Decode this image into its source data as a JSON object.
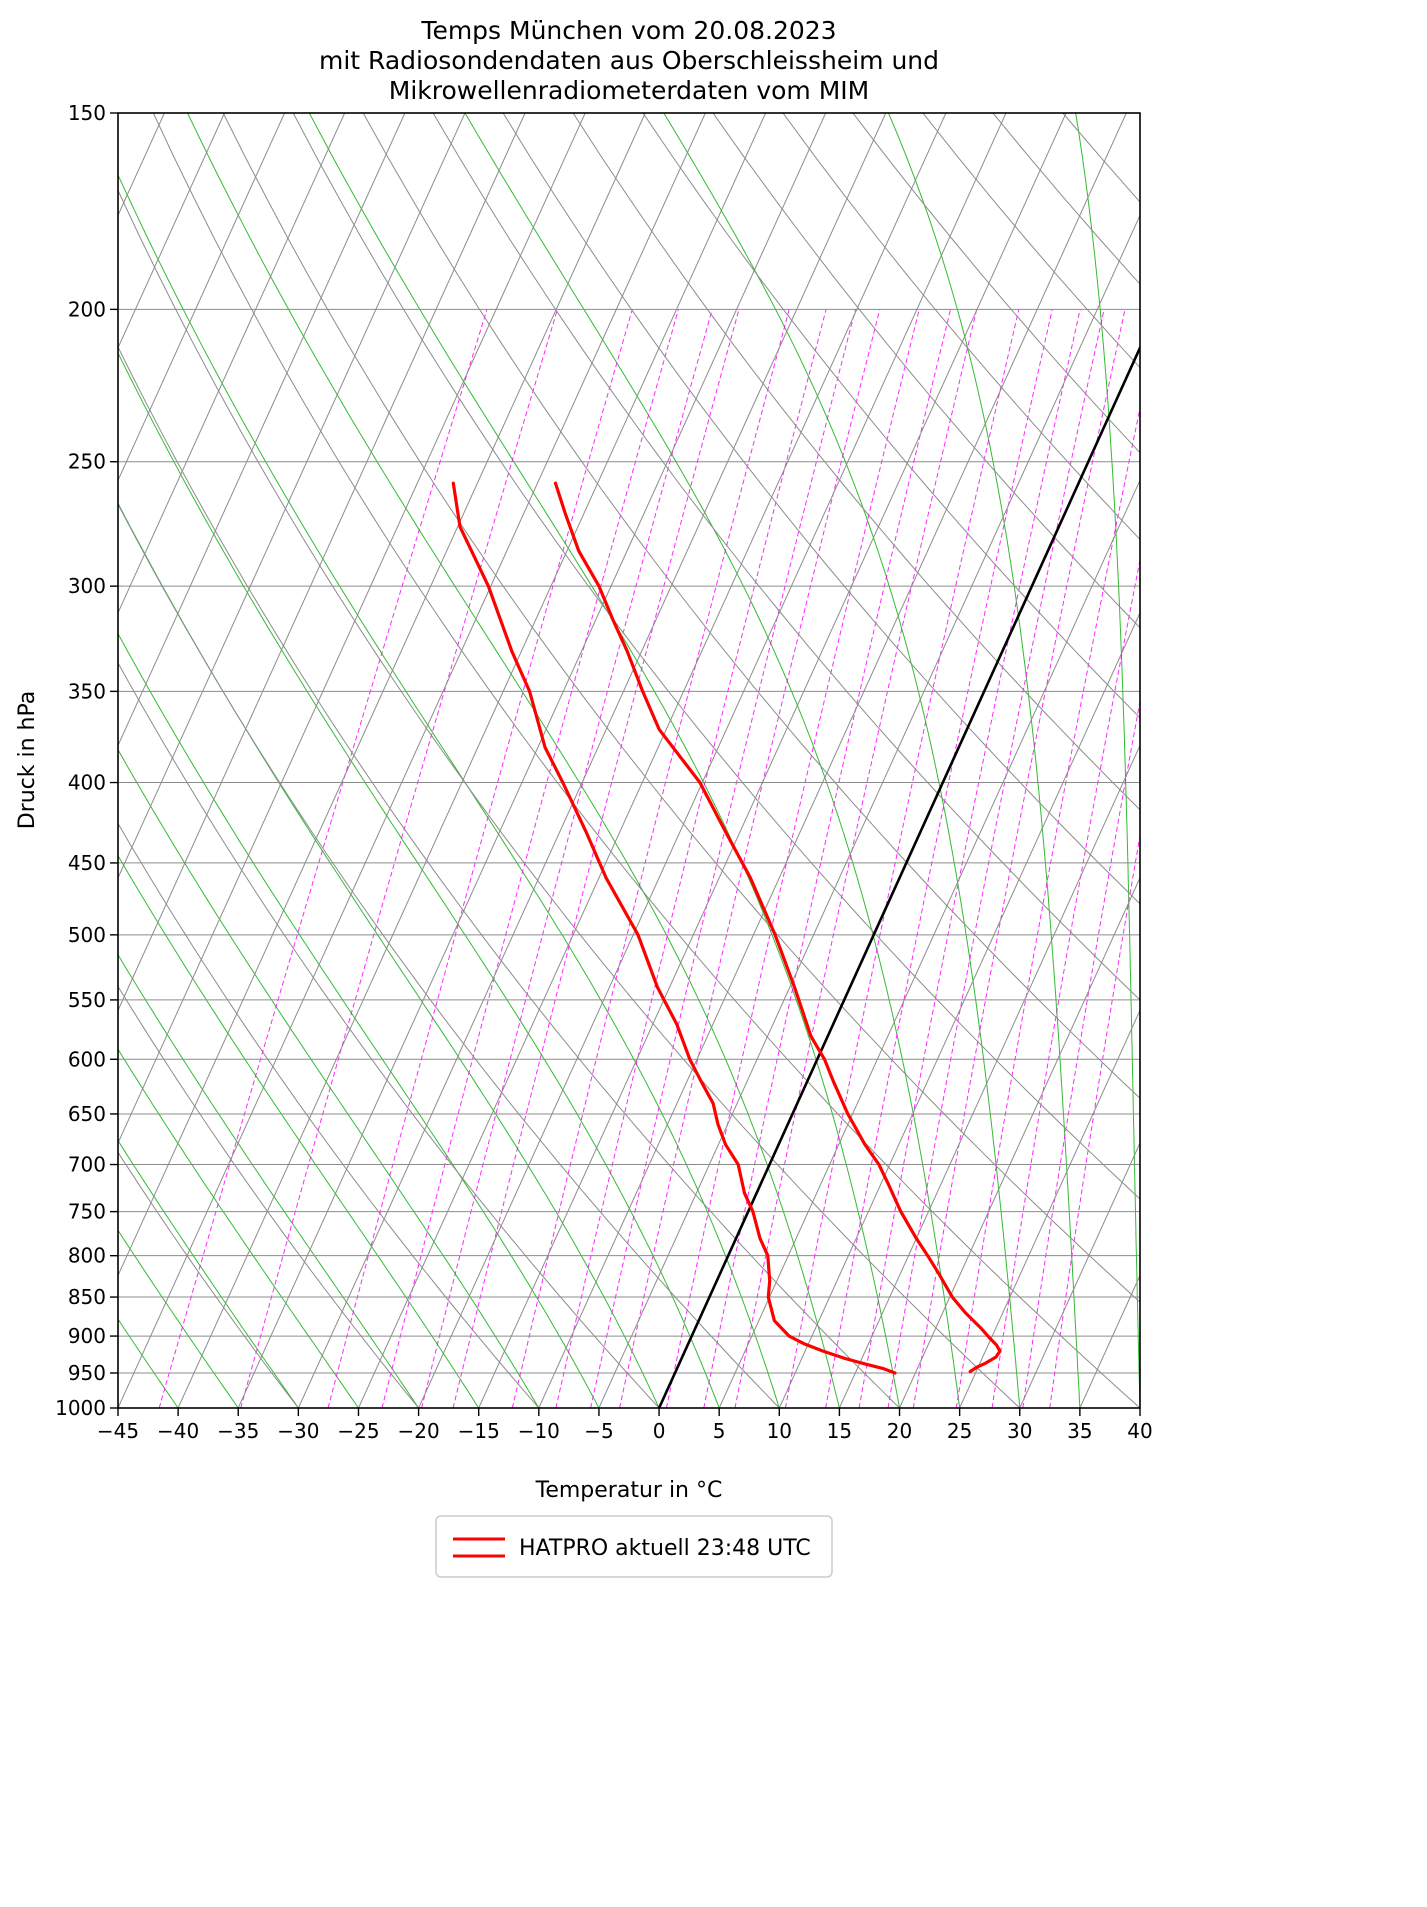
{
  "figure": {
    "title_lines": [
      "Temps München vom 20.08.2023",
      "mit Radiosondendaten aus Oberschleissheim und",
      "Mikrowellenradiometerdaten vom MIM"
    ]
  },
  "chart_data": {
    "type": "line",
    "variant": "skew-t-log-p-diagram",
    "title": "Temps München vom 20.08.2023 mit Radiosondendaten aus Oberschleissheim und Mikrowellenradiometerdaten vom MIM",
    "xlabel": "Temperatur in °C",
    "ylabel": "Druck in hPa",
    "xlim": [
      -45,
      40
    ],
    "pressure_range_hPa": [
      1000,
      150
    ],
    "x_ticks": [
      -45,
      -40,
      -35,
      -30,
      -25,
      -20,
      -15,
      -10,
      -5,
      0,
      5,
      10,
      15,
      20,
      25,
      30,
      35,
      40
    ],
    "y_ticks": [
      150,
      200,
      250,
      300,
      350,
      400,
      450,
      500,
      550,
      600,
      650,
      700,
      750,
      800,
      850,
      900,
      950,
      1000
    ],
    "skew_degC_per_decade": 59.3,
    "grid": {
      "isobar_color": "#8c8c8c",
      "isotherm": {
        "min": -100,
        "max": 40,
        "step": 5,
        "color": "#8c8c8c",
        "zero_line_color": "#000000"
      },
      "dry_adiabats": {
        "min": -30,
        "max": 170,
        "step": 10,
        "color": "#8c8c8c"
      },
      "moist_adiabats": {
        "min": -40,
        "max": 40,
        "step": 5,
        "color": "#33bb33"
      },
      "mixing_ratio_g_kg": [
        0.1,
        0.2,
        0.4,
        0.6,
        0.8,
        1,
        1.5,
        2,
        2.5,
        3,
        4,
        5,
        6,
        8,
        10,
        12,
        14,
        16,
        20,
        24,
        28,
        32
      ],
      "mixing_ratio_color": "#ff00ff",
      "mixing_ratio_top_hPa": 200
    },
    "legend_label": "HATPRO aktuell 23:48 UTC",
    "series": [
      {
        "name": "Temperatur",
        "color": "#ff0000",
        "points_p_T": [
          [
            258,
            -43.5
          ],
          [
            270,
            -41.5
          ],
          [
            285,
            -39.0
          ],
          [
            300,
            -36.0
          ],
          [
            315,
            -33.6
          ],
          [
            330,
            -31.2
          ],
          [
            350,
            -28.4
          ],
          [
            370,
            -25.6
          ],
          [
            400,
            -20.2
          ],
          [
            430,
            -16.2
          ],
          [
            460,
            -12.4
          ],
          [
            500,
            -8.2
          ],
          [
            540,
            -4.6
          ],
          [
            580,
            -1.4
          ],
          [
            600,
            0.6
          ],
          [
            620,
            2.2
          ],
          [
            650,
            4.6
          ],
          [
            680,
            7.2
          ],
          [
            700,
            9.1
          ],
          [
            720,
            10.6
          ],
          [
            750,
            12.7
          ],
          [
            780,
            15.0
          ],
          [
            800,
            16.6
          ],
          [
            820,
            18.1
          ],
          [
            850,
            20.2
          ],
          [
            870,
            21.9
          ],
          [
            890,
            23.8
          ],
          [
            903,
            24.9
          ],
          [
            912,
            25.7
          ],
          [
            920,
            26.2
          ],
          [
            928,
            26.1
          ],
          [
            936,
            25.5
          ],
          [
            942,
            24.9
          ],
          [
            948,
            24.5
          ]
        ]
      },
      {
        "name": "Taupunkt",
        "color": "#ff0000",
        "points_p_T": [
          [
            258,
            -52.0
          ],
          [
            275,
            -49.8
          ],
          [
            300,
            -45.2
          ],
          [
            330,
            -40.8
          ],
          [
            350,
            -37.8
          ],
          [
            380,
            -34.4
          ],
          [
            400,
            -31.6
          ],
          [
            430,
            -27.8
          ],
          [
            460,
            -24.4
          ],
          [
            500,
            -19.6
          ],
          [
            540,
            -16.0
          ],
          [
            570,
            -13.0
          ],
          [
            600,
            -10.6
          ],
          [
            620,
            -8.8
          ],
          [
            640,
            -7.0
          ],
          [
            660,
            -5.8
          ],
          [
            680,
            -4.4
          ],
          [
            700,
            -2.6
          ],
          [
            730,
            -1.0
          ],
          [
            750,
            0.4
          ],
          [
            780,
            2.0
          ],
          [
            800,
            3.3
          ],
          [
            830,
            4.4
          ],
          [
            850,
            4.9
          ],
          [
            880,
            6.3
          ],
          [
            900,
            8.1
          ],
          [
            910,
            9.6
          ],
          [
            920,
            11.5
          ],
          [
            930,
            13.6
          ],
          [
            938,
            15.6
          ],
          [
            944,
            17.2
          ],
          [
            950,
            18.3
          ]
        ]
      }
    ]
  }
}
